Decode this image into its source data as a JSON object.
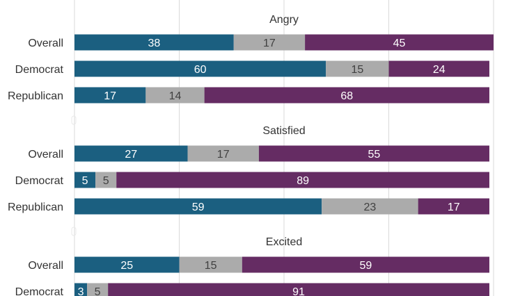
{
  "chart_data": {
    "type": "bar",
    "orientation": "horizontal",
    "stacked": true,
    "grid": true,
    "xlim": [
      0,
      100
    ],
    "colors": [
      "#1b5f80",
      "#ababab",
      "#652c63"
    ],
    "segment_label_colors": [
      "#ffffff",
      "#404040",
      "#ffffff"
    ],
    "groups": [
      {
        "title": "Angry",
        "rows": [
          {
            "label": "Overall",
            "values": [
              38,
              17,
              45
            ]
          },
          {
            "label": "Democrat",
            "values": [
              60,
              15,
              24
            ]
          },
          {
            "label": "Republican",
            "values": [
              17,
              14,
              68
            ]
          }
        ]
      },
      {
        "title": "Satisfied",
        "rows": [
          {
            "label": "Overall",
            "values": [
              27,
              17,
              55
            ]
          },
          {
            "label": "Democrat",
            "values": [
              5,
              5,
              89
            ]
          },
          {
            "label": "Republican",
            "values": [
              59,
              23,
              17
            ]
          }
        ]
      },
      {
        "title": "Excited",
        "rows": [
          {
            "label": "Overall",
            "values": [
              25,
              15,
              59
            ]
          },
          {
            "label": "Democrat",
            "values": [
              3,
              5,
              91
            ]
          }
        ]
      }
    ]
  }
}
